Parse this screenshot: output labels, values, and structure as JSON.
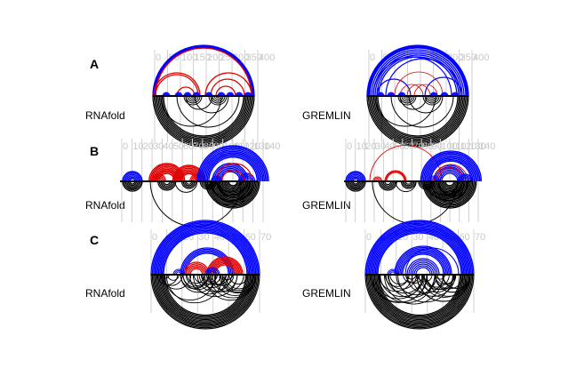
{
  "panels": [
    {
      "letter": "A",
      "plots": [
        {
          "label": "RNAfold",
          "ticks": [
            "0",
            "50",
            "100",
            "150",
            "200",
            "250",
            "300",
            "350",
            "400"
          ],
          "colors": {
            "top_primary": "#0000ff",
            "top_secondary": "#e00000",
            "bottom": "#000000"
          }
        },
        {
          "label": "GREMLIN",
          "ticks": [
            "0",
            "50",
            "100",
            "150",
            "200",
            "250",
            "300",
            "350",
            "400"
          ],
          "colors": {
            "top_primary": "#0000ff",
            "top_secondary": "#e00000",
            "bottom": "#000000"
          }
        }
      ]
    },
    {
      "letter": "B",
      "plots": [
        {
          "label": "RNAfold",
          "ticks": [
            "0",
            "10",
            "20",
            "30",
            "40",
            "50",
            "60",
            "70",
            "80",
            "90",
            "100",
            "110",
            "120",
            "130",
            "140"
          ],
          "colors": {
            "top_primary": "#0000ff",
            "top_secondary": "#e00000",
            "bottom": "#000000"
          }
        },
        {
          "label": "GREMLIN",
          "ticks": [
            "0",
            "10",
            "20",
            "30",
            "40",
            "50",
            "60",
            "70",
            "80",
            "90",
            "100",
            "110",
            "120",
            "130",
            "140"
          ],
          "colors": {
            "top_primary": "#0000ff",
            "top_secondary": "#e00000",
            "bottom": "#000000"
          }
        }
      ]
    },
    {
      "letter": "C",
      "plots": [
        {
          "label": "RNAfold",
          "ticks": [
            "0",
            "10",
            "20",
            "30",
            "40",
            "50",
            "60",
            "70"
          ],
          "colors": {
            "top_primary": "#0000ff",
            "top_secondary": "#e00000",
            "bottom": "#000000"
          }
        },
        {
          "label": "GREMLIN",
          "ticks": [
            "0",
            "10",
            "20",
            "30",
            "40",
            "50",
            "60",
            "70"
          ],
          "colors": {
            "top_primary": "#0000ff",
            "top_secondary": "#e00000",
            "bottom": "#000000"
          }
        }
      ]
    }
  ]
}
